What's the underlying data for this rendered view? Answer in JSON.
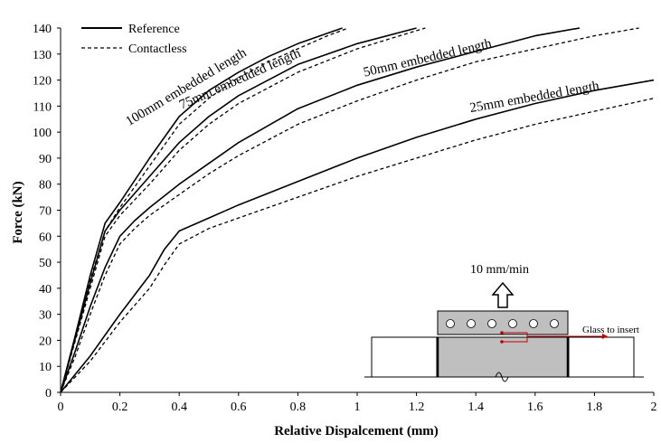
{
  "chart_data": {
    "type": "line",
    "xlabel": "Relative Dispalcement (mm)",
    "ylabel": "Force (kN)",
    "xlim": [
      0,
      2
    ],
    "ylim": [
      0,
      140
    ],
    "xticks": [
      0,
      0.2,
      0.4,
      0.6,
      0.8,
      1,
      1.2,
      1.4,
      1.6,
      1.8,
      2
    ],
    "xtick_labels": [
      "0",
      "0.2",
      "0.4",
      "0.6",
      "0.8",
      "1",
      "1.2",
      "1.4",
      "1.6",
      "1.8",
      "2"
    ],
    "yticks": [
      0,
      10,
      20,
      30,
      40,
      50,
      60,
      70,
      80,
      90,
      100,
      110,
      120,
      130,
      140
    ],
    "ytick_labels": [
      "0",
      "10",
      "20",
      "30",
      "40",
      "50",
      "60",
      "70",
      "80",
      "90",
      "100",
      "110",
      "120",
      "130",
      "140"
    ],
    "grid": false,
    "legend": {
      "position": "top-left",
      "entries": [
        {
          "label": "Reference",
          "style": "solid"
        },
        {
          "label": "Contactless",
          "style": "dashed"
        }
      ]
    },
    "curve_labels": [
      {
        "text": "100mm embedded length",
        "anchor": [
          0.43,
          116
        ],
        "angle_deg": -31
      },
      {
        "text": "75mm embedded length",
        "anchor": [
          0.61,
          119
        ],
        "angle_deg": -24
      },
      {
        "text": "50mm embedded length",
        "anchor": [
          1.24,
          127
        ],
        "angle_deg": -13
      },
      {
        "text": "25mm embedded length",
        "anchor": [
          1.6,
          112
        ],
        "angle_deg": -10
      }
    ],
    "series": [
      {
        "label_ref": "100mm embedded length",
        "style": "solid",
        "x": [
          0,
          0.05,
          0.1,
          0.15,
          0.2,
          0.3,
          0.4,
          0.5,
          0.6,
          0.7,
          0.8,
          0.9,
          0.95
        ],
        "y": [
          0,
          22,
          45,
          65,
          73,
          90,
          106,
          116,
          123,
          129,
          134,
          138,
          140
        ]
      },
      {
        "label_ref": "100mm embedded length",
        "style": "dashed",
        "x": [
          0,
          0.05,
          0.1,
          0.15,
          0.2,
          0.3,
          0.4,
          0.5,
          0.6,
          0.7,
          0.8,
          0.9,
          0.97
        ],
        "y": [
          0,
          21,
          43,
          62,
          71,
          87,
          103,
          113,
          121,
          127,
          132,
          137,
          140
        ]
      },
      {
        "label_ref": "75mm embedded length",
        "style": "solid",
        "x": [
          0,
          0.05,
          0.1,
          0.15,
          0.2,
          0.3,
          0.4,
          0.5,
          0.6,
          0.8,
          1.0,
          1.2
        ],
        "y": [
          0,
          21,
          42,
          62,
          70,
          83,
          96,
          106,
          114,
          126,
          134,
          140
        ]
      },
      {
        "label_ref": "75mm embedded length",
        "style": "dashed",
        "x": [
          0,
          0.05,
          0.1,
          0.15,
          0.2,
          0.3,
          0.4,
          0.5,
          0.6,
          0.8,
          1.0,
          1.2,
          1.23
        ],
        "y": [
          0,
          20,
          40,
          60,
          68,
          80,
          93,
          103,
          111,
          123,
          132,
          139,
          140
        ]
      },
      {
        "label_ref": "50mm embedded length",
        "style": "solid",
        "x": [
          0,
          0.05,
          0.1,
          0.15,
          0.2,
          0.25,
          0.3,
          0.4,
          0.5,
          0.6,
          0.8,
          1.0,
          1.2,
          1.4,
          1.6,
          1.75
        ],
        "y": [
          0,
          16,
          33,
          48,
          60,
          66,
          71,
          80,
          88,
          96,
          109,
          118,
          125,
          131,
          137,
          140
        ]
      },
      {
        "label_ref": "50mm embedded length",
        "style": "dashed",
        "x": [
          0,
          0.05,
          0.1,
          0.15,
          0.2,
          0.25,
          0.3,
          0.4,
          0.5,
          0.6,
          0.8,
          1.0,
          1.2,
          1.4,
          1.6,
          1.8,
          1.95
        ],
        "y": [
          0,
          14,
          30,
          45,
          57,
          63,
          68,
          76,
          84,
          91,
          103,
          112,
          120,
          127,
          132,
          137,
          140
        ]
      },
      {
        "label_ref": "25mm embedded length",
        "style": "solid",
        "x": [
          0,
          0.1,
          0.2,
          0.3,
          0.35,
          0.4,
          0.5,
          0.6,
          0.8,
          1.0,
          1.2,
          1.4,
          1.6,
          1.8,
          2.0
        ],
        "y": [
          0,
          14,
          30,
          45,
          55,
          62,
          67,
          72,
          81,
          90,
          98,
          105,
          111,
          116,
          120
        ]
      },
      {
        "label_ref": "25mm embedded length",
        "style": "dashed",
        "x": [
          0,
          0.1,
          0.2,
          0.3,
          0.35,
          0.4,
          0.5,
          0.6,
          0.8,
          1.0,
          1.2,
          1.4,
          1.6,
          1.8,
          2.0
        ],
        "y": [
          0,
          12,
          27,
          40,
          49,
          57,
          63,
          67,
          75,
          83,
          90,
          97,
          103,
          108,
          113
        ]
      }
    ]
  },
  "inset": {
    "speed_label": "10 mm/min",
    "callout_label": "Glass to insert",
    "callout_color": "#c00000",
    "block_color": "#bfbfbf",
    "hole_count": 6
  }
}
